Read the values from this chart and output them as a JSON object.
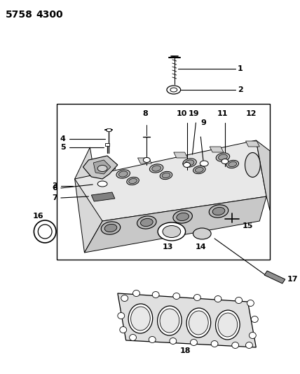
{
  "title1": "5758",
  "title2": "4300",
  "bg_color": "#ffffff",
  "lc": "#000000",
  "fig_width": 4.28,
  "fig_height": 5.33,
  "dpi": 100
}
